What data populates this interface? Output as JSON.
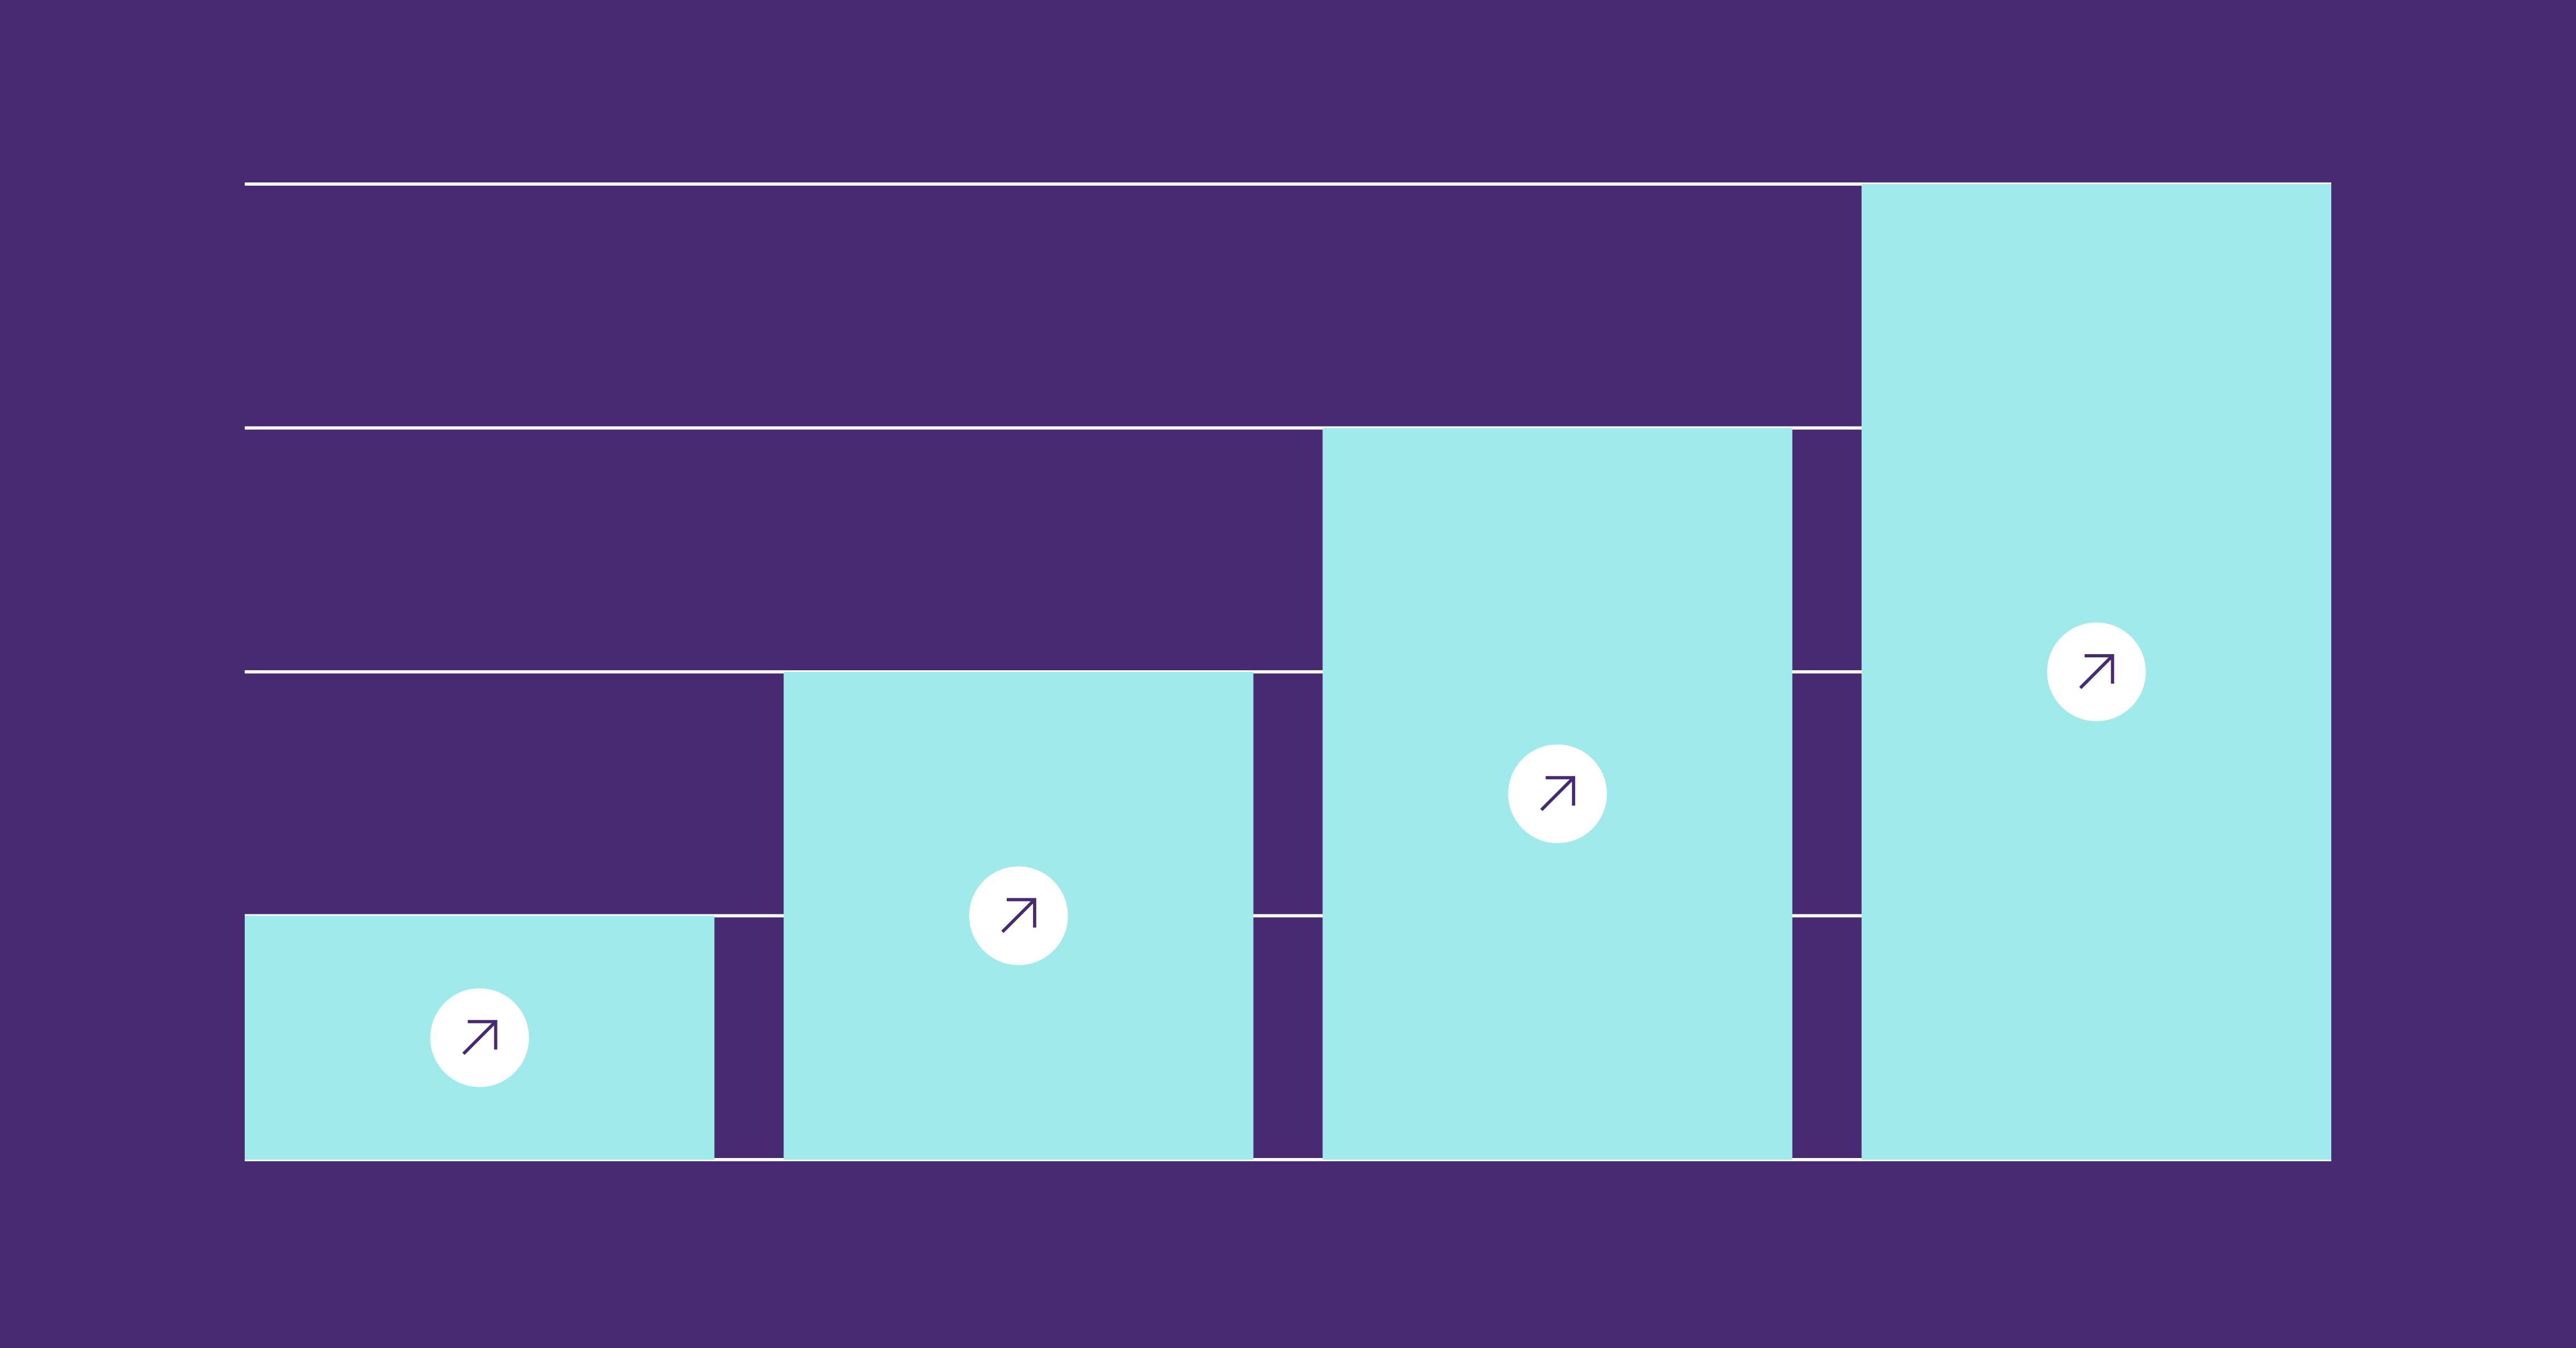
{
  "chart_data": {
    "type": "bar",
    "categories": [
      null,
      null,
      null,
      null
    ],
    "values": [
      1,
      2,
      3,
      4
    ],
    "color": "#a0eaeb",
    "ylim": [
      0,
      4
    ],
    "yticks": [
      0,
      1,
      2,
      3,
      4
    ],
    "grid": true
  }
}
